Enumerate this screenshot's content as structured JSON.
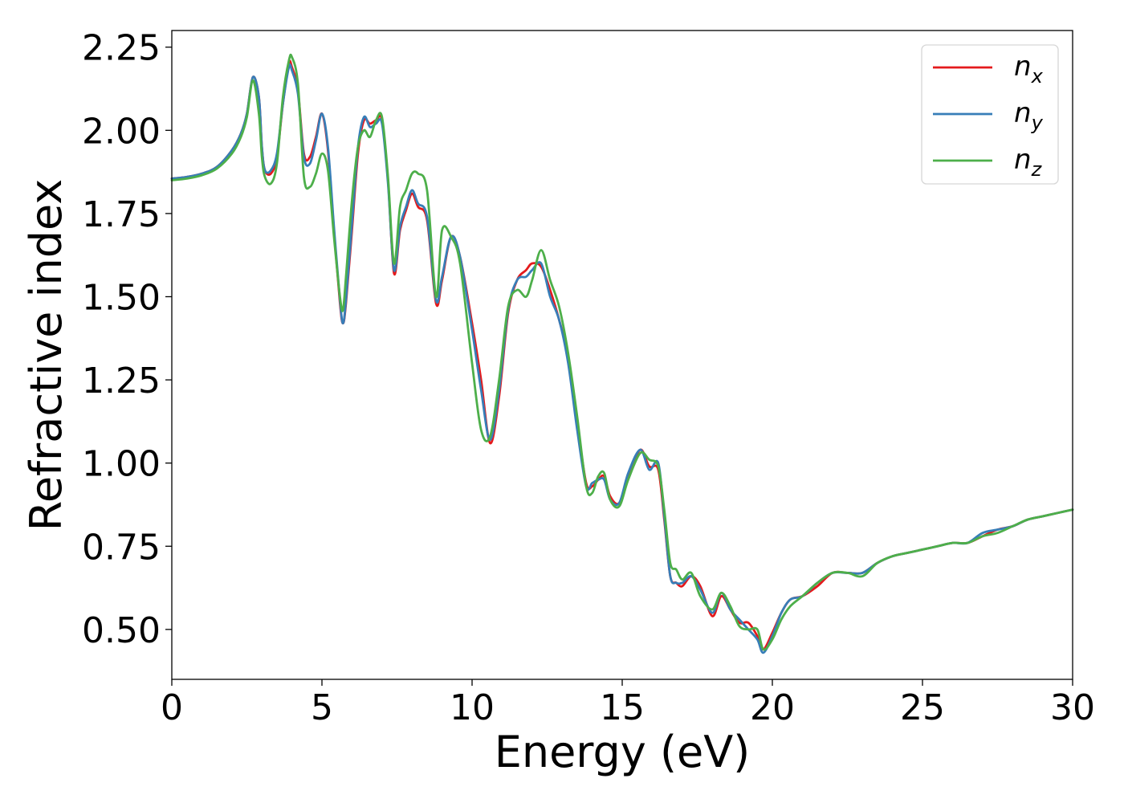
{
  "chart_data": {
    "type": "line",
    "title": "",
    "xlabel": "Energy (eV)",
    "ylabel": "Refractive index",
    "xlim": [
      0,
      30
    ],
    "ylim": [
      0.35,
      2.3
    ],
    "xticks": [
      0,
      5,
      10,
      15,
      20,
      25,
      30
    ],
    "xtick_labels": [
      "0",
      "5",
      "10",
      "15",
      "20",
      "25",
      "30"
    ],
    "yticks": [
      0.5,
      0.75,
      1.0,
      1.25,
      1.5,
      1.75,
      2.0,
      2.25
    ],
    "ytick_labels": [
      "0.50",
      "0.75",
      "1.00",
      "1.25",
      "1.50",
      "1.75",
      "2.00",
      "2.25"
    ],
    "grid": false,
    "legend_position": "top-right",
    "series": [
      {
        "name": "n",
        "subscript": "x",
        "color": "#e41a1c",
        "x": [
          0,
          0.5,
          1,
          1.5,
          2,
          2.3,
          2.5,
          2.7,
          2.9,
          3.0,
          3.1,
          3.3,
          3.5,
          3.7,
          3.9,
          4.0,
          4.2,
          4.4,
          4.6,
          4.8,
          5.0,
          5.2,
          5.4,
          5.6,
          5.7,
          5.8,
          6.0,
          6.2,
          6.4,
          6.6,
          6.8,
          7.0,
          7.2,
          7.4,
          7.6,
          7.8,
          8.0,
          8.2,
          8.5,
          8.8,
          9.0,
          9.3,
          9.6,
          10.0,
          10.3,
          10.6,
          10.9,
          11.2,
          11.5,
          11.8,
          12.0,
          12.3,
          12.6,
          12.9,
          13.2,
          13.5,
          13.8,
          14.0,
          14.2,
          14.4,
          14.6,
          14.9,
          15.2,
          15.6,
          15.9,
          16.2,
          16.4,
          16.6,
          16.8,
          17.0,
          17.3,
          17.6,
          18.0,
          18.3,
          18.6,
          18.9,
          19.2,
          19.5,
          19.7,
          20.0,
          20.3,
          20.6,
          21.0,
          21.5,
          22.0,
          22.5,
          23.0,
          23.5,
          24.0,
          24.5,
          25.0,
          25.5,
          26.0,
          26.5,
          27.0,
          27.5,
          28.0,
          28.5,
          29.0,
          29.5,
          30.0
        ],
        "y": [
          1.855,
          1.86,
          1.87,
          1.89,
          1.94,
          1.99,
          2.05,
          2.16,
          2.1,
          1.95,
          1.88,
          1.87,
          1.92,
          2.08,
          2.2,
          2.19,
          2.12,
          1.93,
          1.92,
          1.98,
          2.05,
          1.94,
          1.7,
          1.48,
          1.42,
          1.48,
          1.7,
          1.93,
          2.03,
          2.02,
          2.03,
          2.03,
          1.85,
          1.57,
          1.7,
          1.76,
          1.81,
          1.77,
          1.73,
          1.48,
          1.55,
          1.68,
          1.62,
          1.42,
          1.25,
          1.06,
          1.2,
          1.45,
          1.55,
          1.58,
          1.6,
          1.59,
          1.52,
          1.43,
          1.32,
          1.12,
          0.94,
          0.93,
          0.95,
          0.96,
          0.9,
          0.88,
          0.96,
          1.04,
          0.99,
          0.98,
          0.83,
          0.66,
          0.64,
          0.63,
          0.66,
          0.63,
          0.54,
          0.6,
          0.56,
          0.52,
          0.52,
          0.48,
          0.44,
          0.49,
          0.55,
          0.59,
          0.6,
          0.63,
          0.67,
          0.67,
          0.67,
          0.7,
          0.72,
          0.73,
          0.74,
          0.75,
          0.76,
          0.76,
          0.78,
          0.8,
          0.81,
          0.83,
          0.84,
          0.85,
          0.86
        ]
      },
      {
        "name": "n",
        "subscript": "y",
        "color": "#377eb8",
        "x": [
          0,
          0.5,
          1,
          1.5,
          2,
          2.3,
          2.5,
          2.7,
          2.9,
          3.0,
          3.1,
          3.3,
          3.5,
          3.7,
          3.9,
          4.0,
          4.2,
          4.4,
          4.6,
          4.8,
          5.0,
          5.2,
          5.4,
          5.6,
          5.7,
          5.8,
          6.0,
          6.2,
          6.4,
          6.6,
          6.8,
          7.0,
          7.2,
          7.4,
          7.6,
          7.8,
          8.0,
          8.2,
          8.5,
          8.8,
          9.0,
          9.3,
          9.6,
          10.0,
          10.3,
          10.6,
          10.9,
          11.2,
          11.5,
          11.8,
          12.0,
          12.3,
          12.6,
          12.9,
          13.2,
          13.5,
          13.8,
          14.0,
          14.2,
          14.4,
          14.6,
          14.9,
          15.2,
          15.6,
          15.9,
          16.2,
          16.4,
          16.6,
          16.8,
          17.0,
          17.3,
          17.6,
          18.0,
          18.3,
          18.6,
          18.9,
          19.2,
          19.5,
          19.7,
          20.0,
          20.3,
          20.6,
          21.0,
          21.5,
          22.0,
          22.5,
          23.0,
          23.5,
          24.0,
          24.5,
          25.0,
          25.5,
          26.0,
          26.5,
          27.0,
          27.5,
          28.0,
          28.5,
          29.0,
          29.5,
          30.0
        ],
        "y": [
          1.855,
          1.86,
          1.87,
          1.89,
          1.94,
          1.99,
          2.05,
          2.16,
          2.1,
          1.95,
          1.88,
          1.88,
          1.93,
          2.08,
          2.19,
          2.18,
          2.11,
          1.92,
          1.9,
          1.97,
          2.05,
          1.95,
          1.71,
          1.49,
          1.42,
          1.49,
          1.72,
          1.95,
          2.04,
          2.01,
          2.02,
          2.02,
          1.84,
          1.58,
          1.71,
          1.77,
          1.82,
          1.78,
          1.74,
          1.49,
          1.56,
          1.68,
          1.62,
          1.4,
          1.22,
          1.07,
          1.22,
          1.46,
          1.55,
          1.56,
          1.58,
          1.6,
          1.5,
          1.43,
          1.3,
          1.1,
          0.93,
          0.94,
          0.95,
          0.95,
          0.89,
          0.88,
          0.97,
          1.04,
          0.98,
          1.0,
          0.84,
          0.66,
          0.64,
          0.64,
          0.66,
          0.62,
          0.55,
          0.61,
          0.56,
          0.53,
          0.5,
          0.47,
          0.43,
          0.48,
          0.55,
          0.59,
          0.6,
          0.64,
          0.67,
          0.67,
          0.67,
          0.7,
          0.72,
          0.73,
          0.74,
          0.75,
          0.76,
          0.76,
          0.79,
          0.8,
          0.81,
          0.83,
          0.84,
          0.85,
          0.86
        ]
      },
      {
        "name": "n",
        "subscript": "z",
        "color": "#4daf4a",
        "x": [
          0,
          0.5,
          1,
          1.5,
          2,
          2.3,
          2.5,
          2.7,
          2.9,
          3.0,
          3.1,
          3.3,
          3.5,
          3.7,
          3.9,
          4.0,
          4.2,
          4.4,
          4.6,
          4.8,
          5.0,
          5.2,
          5.4,
          5.6,
          5.7,
          5.8,
          6.0,
          6.2,
          6.4,
          6.6,
          6.8,
          7.0,
          7.2,
          7.4,
          7.6,
          7.8,
          8.0,
          8.2,
          8.5,
          8.8,
          9.0,
          9.3,
          9.6,
          10.0,
          10.3,
          10.6,
          10.9,
          11.2,
          11.5,
          11.8,
          12.0,
          12.3,
          12.6,
          12.9,
          13.2,
          13.5,
          13.8,
          14.0,
          14.2,
          14.4,
          14.6,
          14.9,
          15.2,
          15.6,
          15.9,
          16.2,
          16.4,
          16.6,
          16.8,
          17.0,
          17.3,
          17.6,
          18.0,
          18.3,
          18.6,
          18.9,
          19.2,
          19.5,
          19.7,
          20.0,
          20.3,
          20.6,
          21.0,
          21.5,
          22.0,
          22.5,
          23.0,
          23.5,
          24.0,
          24.5,
          25.0,
          25.5,
          26.0,
          26.5,
          27.0,
          27.5,
          28.0,
          28.5,
          29.0,
          29.5,
          30.0
        ],
        "y": [
          1.85,
          1.855,
          1.865,
          1.885,
          1.93,
          1.98,
          2.04,
          2.15,
          2.05,
          1.92,
          1.86,
          1.84,
          1.9,
          2.1,
          2.21,
          2.22,
          2.14,
          1.86,
          1.83,
          1.87,
          1.93,
          1.88,
          1.68,
          1.5,
          1.46,
          1.56,
          1.79,
          1.95,
          2.0,
          1.98,
          2.03,
          2.04,
          1.86,
          1.6,
          1.77,
          1.82,
          1.87,
          1.87,
          1.82,
          1.5,
          1.7,
          1.68,
          1.6,
          1.3,
          1.1,
          1.08,
          1.25,
          1.47,
          1.52,
          1.5,
          1.55,
          1.64,
          1.55,
          1.47,
          1.33,
          1.14,
          0.93,
          0.91,
          0.96,
          0.97,
          0.89,
          0.87,
          0.95,
          1.03,
          1.01,
          0.99,
          0.86,
          0.7,
          0.68,
          0.65,
          0.67,
          0.6,
          0.56,
          0.61,
          0.57,
          0.51,
          0.5,
          0.5,
          0.44,
          0.47,
          0.53,
          0.57,
          0.6,
          0.64,
          0.67,
          0.67,
          0.66,
          0.7,
          0.72,
          0.73,
          0.74,
          0.75,
          0.76,
          0.76,
          0.78,
          0.79,
          0.81,
          0.83,
          0.84,
          0.85,
          0.86
        ]
      }
    ]
  }
}
